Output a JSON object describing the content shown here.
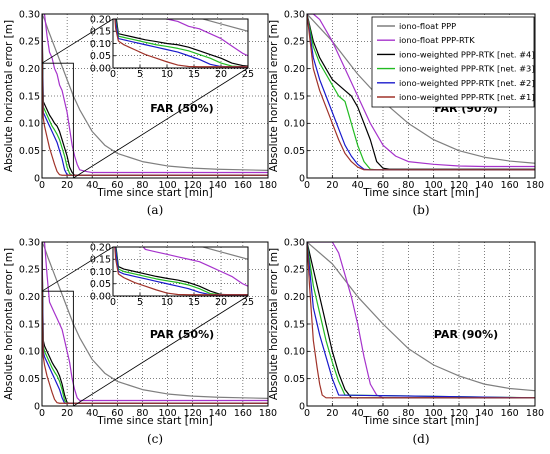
{
  "chart_data": [
    {
      "type": "line",
      "caption": "(a)",
      "annotation": "FAR (50%)",
      "xlabel": "Time since start [min]",
      "ylabel": "Absolute horizontal error [m]",
      "xlim": [
        0,
        180
      ],
      "ylim": [
        0,
        0.3
      ],
      "xticks": [
        "0",
        "20",
        "40",
        "60",
        "80",
        "100",
        "120",
        "140",
        "160",
        "180"
      ],
      "yticks": [
        "0",
        "0.05",
        "0.10",
        "0.15",
        "0.20",
        "0.25",
        "0.30"
      ],
      "grid": true,
      "inset": {
        "xlim": [
          0,
          25
        ],
        "ylim": [
          0,
          0.2
        ],
        "xticks": [
          "0",
          "5",
          "10",
          "15",
          "20",
          "25"
        ],
        "yticks": [
          "0.00",
          "0.05",
          "0.10",
          "0.15",
          "0.20"
        ],
        "zoom_box": {
          "x": [
            0,
            25
          ],
          "y": [
            0,
            0.21
          ]
        }
      },
      "series": [
        {
          "name": "iono-float PPP",
          "color": "#7f7f7f",
          "x": [
            0,
            2,
            5,
            10,
            15,
            20,
            25,
            30,
            40,
            50,
            60,
            80,
            100,
            120,
            140,
            160,
            180
          ],
          "y": [
            0.3,
            0.29,
            0.27,
            0.24,
            0.21,
            0.18,
            0.15,
            0.125,
            0.085,
            0.06,
            0.045,
            0.03,
            0.022,
            0.018,
            0.016,
            0.015,
            0.014
          ]
        },
        {
          "name": "iono-float PPP-RTK",
          "color": "#a633cc",
          "x": [
            0,
            2,
            4,
            6,
            8,
            10,
            12,
            14,
            16,
            18,
            20,
            22,
            24,
            26,
            28,
            30,
            35,
            40,
            60,
            100,
            180
          ],
          "y": [
            0.3,
            0.3,
            0.26,
            0.23,
            0.22,
            0.2,
            0.19,
            0.17,
            0.16,
            0.14,
            0.12,
            0.09,
            0.06,
            0.04,
            0.025,
            0.015,
            0.012,
            0.01,
            0.01,
            0.01,
            0.01
          ]
        },
        {
          "name": "iono-weighted PPP-RTK [net. #4]",
          "color": "#000000",
          "x": [
            0,
            0.5,
            1,
            2,
            4,
            6,
            8,
            10,
            12,
            14,
            16,
            18,
            20,
            22,
            24,
            26,
            40,
            180
          ],
          "y": [
            0.3,
            0.22,
            0.14,
            0.135,
            0.125,
            0.115,
            0.108,
            0.1,
            0.095,
            0.085,
            0.07,
            0.055,
            0.04,
            0.02,
            0.01,
            0.005,
            0.005,
            0.005
          ]
        },
        {
          "name": "iono-weighted PPP-RTK [net. #3]",
          "color": "#22bb22",
          "x": [
            0,
            0.5,
            1,
            2,
            4,
            6,
            8,
            10,
            12,
            14,
            16,
            18,
            20,
            22,
            24,
            26,
            180
          ],
          "y": [
            0.3,
            0.2,
            0.13,
            0.125,
            0.115,
            0.105,
            0.095,
            0.088,
            0.08,
            0.07,
            0.055,
            0.04,
            0.02,
            0.008,
            0.005,
            0.005,
            0.005
          ]
        },
        {
          "name": "iono-weighted PPP-RTK [net. #2]",
          "color": "#1a1acc",
          "x": [
            0,
            0.5,
            1,
            2,
            4,
            6,
            8,
            10,
            12,
            14,
            16,
            18,
            20,
            22,
            180
          ],
          "y": [
            0.3,
            0.19,
            0.12,
            0.115,
            0.105,
            0.095,
            0.085,
            0.075,
            0.065,
            0.05,
            0.035,
            0.015,
            0.006,
            0.005,
            0.005
          ]
        },
        {
          "name": "iono-weighted PPP-RTK [net. #1]",
          "color": "#a0332a",
          "x": [
            0,
            0.5,
            1,
            2,
            4,
            6,
            8,
            10,
            12,
            14,
            16,
            180
          ],
          "y": [
            0.3,
            0.16,
            0.11,
            0.095,
            0.075,
            0.055,
            0.04,
            0.025,
            0.012,
            0.006,
            0.005,
            0.005
          ]
        }
      ]
    },
    {
      "type": "line",
      "caption": "(b)",
      "annotation": "FAR (90%)",
      "xlabel": "Time since start [min]",
      "ylabel": "Absolute horizontal error [m]",
      "xlim": [
        0,
        180
      ],
      "ylim": [
        0,
        0.3
      ],
      "xticks": [
        "0",
        "20",
        "40",
        "60",
        "80",
        "100",
        "120",
        "140",
        "160",
        "180"
      ],
      "yticks": [
        "0",
        "0.05",
        "0.10",
        "0.15",
        "0.20",
        "0.25",
        "0.30"
      ],
      "grid": true,
      "legend": "top-right",
      "series": [
        {
          "name": "iono-float PPP",
          "color": "#7f7f7f",
          "x": [
            0,
            20,
            40,
            60,
            80,
            100,
            120,
            140,
            160,
            180
          ],
          "y": [
            0.3,
            0.25,
            0.19,
            0.14,
            0.1,
            0.07,
            0.05,
            0.038,
            0.031,
            0.027
          ]
        },
        {
          "name": "iono-float PPP-RTK",
          "color": "#a633cc",
          "x": [
            0,
            5,
            10,
            20,
            30,
            40,
            50,
            60,
            70,
            80,
            100,
            120,
            140,
            160,
            180
          ],
          "y": [
            0.3,
            0.3,
            0.29,
            0.25,
            0.2,
            0.15,
            0.1,
            0.06,
            0.04,
            0.03,
            0.025,
            0.022,
            0.021,
            0.021,
            0.021
          ]
        },
        {
          "name": "iono-weighted PPP-RTK [net. #4]",
          "color": "#000000",
          "x": [
            0,
            5,
            10,
            15,
            20,
            25,
            30,
            35,
            40,
            45,
            50,
            55,
            60,
            65,
            180
          ],
          "y": [
            0.3,
            0.25,
            0.22,
            0.2,
            0.18,
            0.17,
            0.16,
            0.15,
            0.13,
            0.1,
            0.07,
            0.03,
            0.018,
            0.016,
            0.016
          ]
        },
        {
          "name": "iono-weighted PPP-RTK [net. #3]",
          "color": "#22bb22",
          "x": [
            0,
            5,
            10,
            15,
            20,
            25,
            30,
            35,
            40,
            45,
            50,
            55,
            180
          ],
          "y": [
            0.3,
            0.24,
            0.21,
            0.19,
            0.17,
            0.15,
            0.14,
            0.1,
            0.06,
            0.03,
            0.016,
            0.015,
            0.015
          ]
        },
        {
          "name": "iono-weighted PPP-RTK [net. #2]",
          "color": "#1a1acc",
          "x": [
            0,
            5,
            10,
            15,
            20,
            25,
            30,
            35,
            40,
            45,
            50,
            180
          ],
          "y": [
            0.3,
            0.22,
            0.18,
            0.15,
            0.12,
            0.09,
            0.06,
            0.04,
            0.025,
            0.016,
            0.015,
            0.015
          ]
        },
        {
          "name": "iono-weighted PPP-RTK [net. #1]",
          "color": "#a0332a",
          "x": [
            0,
            5,
            10,
            15,
            20,
            25,
            30,
            35,
            40,
            45,
            180
          ],
          "y": [
            0.3,
            0.2,
            0.16,
            0.13,
            0.1,
            0.07,
            0.045,
            0.03,
            0.02,
            0.015,
            0.015
          ]
        }
      ]
    },
    {
      "type": "line",
      "caption": "(c)",
      "annotation": "PAR (50%)",
      "xlabel": "Time since start [min]",
      "ylabel": "Absolute horizontal error [m]",
      "xlim": [
        0,
        180
      ],
      "ylim": [
        0,
        0.3
      ],
      "xticks": [
        "0",
        "20",
        "40",
        "60",
        "80",
        "100",
        "120",
        "140",
        "160",
        "180"
      ],
      "yticks": [
        "0",
        "0.05",
        "0.10",
        "0.15",
        "0.20",
        "0.25",
        "0.30"
      ],
      "grid": true,
      "inset": {
        "xlim": [
          0,
          25
        ],
        "ylim": [
          0,
          0.2
        ],
        "xticks": [
          "0",
          "5",
          "10",
          "15",
          "20",
          "25"
        ],
        "yticks": [
          "0.00",
          "0.05",
          "0.10",
          "0.15",
          "0.20"
        ],
        "zoom_box": {
          "x": [
            0,
            25
          ],
          "y": [
            0,
            0.21
          ]
        }
      },
      "series": [
        {
          "name": "iono-float PPP",
          "color": "#7f7f7f",
          "x": [
            0,
            2,
            5,
            10,
            15,
            20,
            25,
            30,
            40,
            50,
            60,
            80,
            100,
            120,
            140,
            160,
            180
          ],
          "y": [
            0.3,
            0.29,
            0.27,
            0.24,
            0.21,
            0.18,
            0.15,
            0.125,
            0.085,
            0.06,
            0.045,
            0.03,
            0.022,
            0.018,
            0.016,
            0.015,
            0.014
          ]
        },
        {
          "name": "iono-float PPP-RTK",
          "color": "#a633cc",
          "x": [
            0,
            2,
            4,
            6,
            8,
            10,
            12,
            14,
            16,
            18,
            20,
            22,
            24,
            26,
            28,
            30,
            35,
            40,
            60,
            100,
            180
          ],
          "y": [
            0.3,
            0.3,
            0.24,
            0.19,
            0.18,
            0.17,
            0.16,
            0.15,
            0.14,
            0.12,
            0.1,
            0.08,
            0.05,
            0.03,
            0.015,
            0.01,
            0.01,
            0.01,
            0.01,
            0.01,
            0.01
          ]
        },
        {
          "name": "iono-weighted PPP-RTK [net. #4]",
          "color": "#000000",
          "x": [
            0,
            0.5,
            1,
            2,
            4,
            6,
            8,
            10,
            12,
            14,
            16,
            18,
            20,
            22,
            180
          ],
          "y": [
            0.3,
            0.21,
            0.12,
            0.11,
            0.1,
            0.09,
            0.08,
            0.072,
            0.065,
            0.055,
            0.04,
            0.02,
            0.006,
            0.005,
            0.005
          ]
        },
        {
          "name": "iono-weighted PPP-RTK [net. #3]",
          "color": "#22bb22",
          "x": [
            0,
            0.5,
            1,
            2,
            4,
            6,
            8,
            10,
            12,
            14,
            16,
            18,
            20,
            180
          ],
          "y": [
            0.3,
            0.2,
            0.11,
            0.1,
            0.09,
            0.08,
            0.07,
            0.062,
            0.055,
            0.045,
            0.03,
            0.01,
            0.005,
            0.005
          ]
        },
        {
          "name": "iono-weighted PPP-RTK [net. #2]",
          "color": "#1a1acc",
          "x": [
            0,
            0.5,
            1,
            2,
            4,
            6,
            8,
            10,
            12,
            14,
            16,
            18,
            180
          ],
          "y": [
            0.3,
            0.19,
            0.1,
            0.09,
            0.08,
            0.07,
            0.06,
            0.05,
            0.04,
            0.03,
            0.015,
            0.005,
            0.005
          ]
        },
        {
          "name": "iono-weighted PPP-RTK [net. #1]",
          "color": "#a0332a",
          "x": [
            0,
            0.5,
            1,
            2,
            4,
            6,
            8,
            10,
            12,
            14,
            180
          ],
          "y": [
            0.3,
            0.15,
            0.09,
            0.075,
            0.055,
            0.04,
            0.025,
            0.012,
            0.006,
            0.005,
            0.005
          ]
        }
      ]
    },
    {
      "type": "line",
      "caption": "(d)",
      "annotation": "PAR (90%)",
      "xlabel": "Time since start [min]",
      "ylabel": "Absolute horizontal error [m]",
      "xlim": [
        0,
        180
      ],
      "ylim": [
        0,
        0.3
      ],
      "xticks": [
        "0",
        "20",
        "40",
        "60",
        "80",
        "100",
        "120",
        "140",
        "160",
        "180"
      ],
      "yticks": [
        "0",
        "0.05",
        "0.10",
        "0.15",
        "0.20",
        "0.25",
        "0.30"
      ],
      "grid": true,
      "series": [
        {
          "name": "iono-float PPP",
          "color": "#7f7f7f",
          "x": [
            0,
            20,
            40,
            60,
            80,
            100,
            120,
            140,
            160,
            180
          ],
          "y": [
            0.3,
            0.26,
            0.2,
            0.15,
            0.105,
            0.075,
            0.055,
            0.04,
            0.032,
            0.028
          ]
        },
        {
          "name": "iono-float PPP-RTK",
          "color": "#a633cc",
          "x": [
            0,
            10,
            20,
            25,
            30,
            35,
            40,
            45,
            50,
            55,
            60,
            180
          ],
          "y": [
            0.3,
            0.3,
            0.3,
            0.28,
            0.24,
            0.2,
            0.15,
            0.09,
            0.04,
            0.02,
            0.015,
            0.015
          ]
        },
        {
          "name": "iono-weighted PPP-RTK [net. #4]",
          "color": "#000000",
          "x": [
            0,
            5,
            10,
            15,
            20,
            25,
            30,
            35,
            180
          ],
          "y": [
            0.3,
            0.25,
            0.2,
            0.15,
            0.1,
            0.06,
            0.03,
            0.015,
            0.015
          ]
        },
        {
          "name": "iono-weighted PPP-RTK [net. #3]",
          "color": "#22bb22",
          "x": [
            0,
            5,
            10,
            15,
            20,
            25,
            30,
            180
          ],
          "y": [
            0.3,
            0.22,
            0.17,
            0.12,
            0.08,
            0.045,
            0.02,
            0.015
          ]
        },
        {
          "name": "iono-weighted PPP-RTK [net. #2]",
          "color": "#1a1acc",
          "x": [
            0,
            5,
            10,
            15,
            20,
            25,
            180
          ],
          "y": [
            0.3,
            0.18,
            0.13,
            0.09,
            0.05,
            0.02,
            0.015
          ]
        },
        {
          "name": "iono-weighted PPP-RTK [net. #1]",
          "color": "#a0332a",
          "x": [
            0,
            2,
            5,
            8,
            10,
            12,
            15,
            180
          ],
          "y": [
            0.3,
            0.22,
            0.12,
            0.07,
            0.04,
            0.02,
            0.015,
            0.015
          ]
        }
      ]
    }
  ]
}
